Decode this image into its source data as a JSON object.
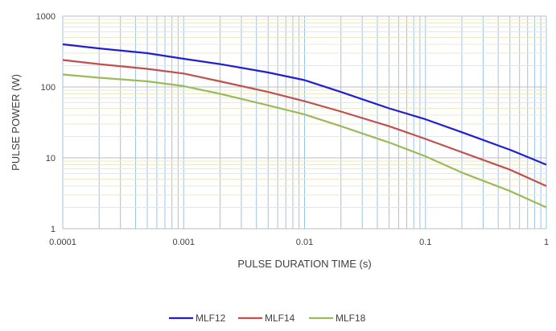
{
  "chart_data": {
    "type": "line",
    "xlabel": "PULSE DURATION TIME (s)",
    "ylabel": "PULSE POWER (W)",
    "x_scale": "log",
    "y_scale": "log",
    "xlim": [
      0.0001,
      1
    ],
    "ylim": [
      1,
      1000
    ],
    "x_ticks": [
      "0.0001",
      "0.001",
      "0.01",
      "0.1",
      "1"
    ],
    "y_ticks": [
      "1",
      "10",
      "100",
      "1000"
    ],
    "grid": true,
    "legend_position": "bottom",
    "x": [
      0.0001,
      0.0002,
      0.0005,
      0.001,
      0.002,
      0.005,
      0.01,
      0.02,
      0.05,
      0.1,
      0.2,
      0.5,
      1
    ],
    "series": [
      {
        "name": "MLF12",
        "color": "#1f1fd1",
        "values": [
          400,
          350,
          300,
          250,
          210,
          160,
          125,
          85,
          50,
          35,
          23,
          13,
          8
        ]
      },
      {
        "name": "MLF14",
        "color": "#c0504d",
        "values": [
          240,
          210,
          180,
          155,
          120,
          85,
          63,
          45,
          28,
          18.5,
          12,
          6.8,
          4
        ]
      },
      {
        "name": "MLF18",
        "color": "#9bbb59",
        "values": [
          150,
          135,
          120,
          103,
          80,
          55,
          41,
          28,
          16.5,
          10.5,
          6.2,
          3.4,
          2
        ]
      }
    ]
  }
}
